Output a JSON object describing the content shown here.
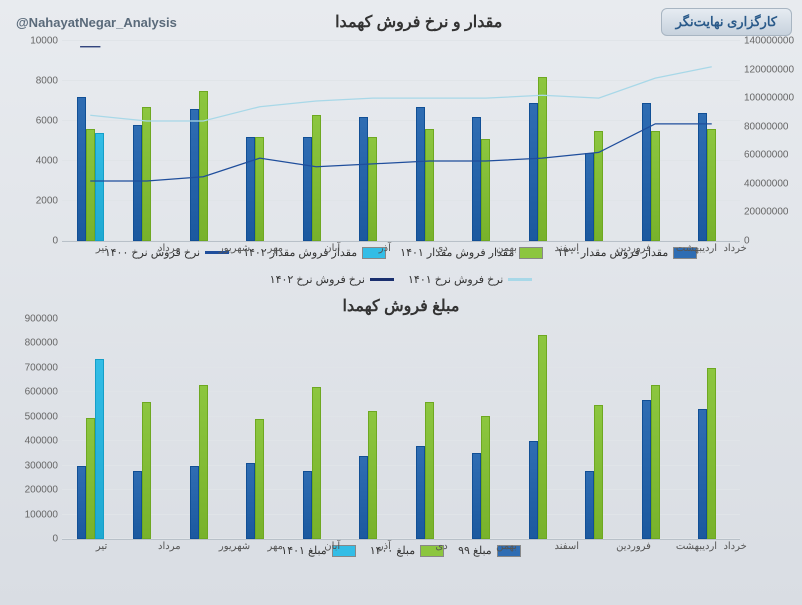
{
  "brokerage": "کارگزاری نهایت‌نگر",
  "handle": "@NahayatNegar_Analysis",
  "chart1": {
    "title": "مقدار و نرخ فروش کهمدا",
    "categories": [
      "تیر",
      "مرداد",
      "شهریور",
      "مهر",
      "آبان",
      "آذر",
      "دی",
      "بهمن",
      "اسفند",
      "فروردین",
      "اردیبهشت",
      "خرداد"
    ],
    "left_axis": {
      "min": 0,
      "max": 10000,
      "step": 2000
    },
    "right_axis": {
      "min": 0,
      "max": 140000000,
      "step": 20000000
    },
    "bar_w": 0.16,
    "series_bars": [
      {
        "name": "مقدار فروش مقدار۱۴۰۰",
        "color": "#2f6db3",
        "data": [
          7200,
          5800,
          6600,
          5200,
          5200,
          6200,
          6700,
          6200,
          6900,
          4400,
          6900,
          6400
        ]
      },
      {
        "name": "مقدار فروش مقدار ۱۴۰۱",
        "color": "#8cc63f",
        "data": [
          5600,
          6700,
          7500,
          5200,
          6300,
          5200,
          5600,
          5100,
          8200,
          5500,
          5500,
          5600
        ]
      },
      {
        "name": "مقدار فروش مقدار ۱۴۰۲",
        "color": "#33bde6",
        "data": [
          5400,
          null,
          null,
          null,
          null,
          null,
          null,
          null,
          null,
          null,
          null,
          null
        ]
      }
    ],
    "series_lines": [
      {
        "name": "نرخ فروش نرخ ۱۴۰۰",
        "color": "#1f4e9c",
        "width": 2.5,
        "data": [
          42000000,
          42000000,
          45000000,
          58000000,
          52000000,
          54000000,
          56000000,
          56000000,
          58000000,
          62000000,
          82000000,
          82000000
        ]
      },
      {
        "name": "نرخ فروش نرخ ۱۴۰۱",
        "color": "#a8d8e8",
        "width": 2.5,
        "data": [
          88000000,
          84000000,
          84000000,
          94000000,
          98000000,
          100000000,
          100000000,
          100000000,
          102000000,
          100000000,
          114000000,
          122000000
        ]
      },
      {
        "name": "نرخ فروش نرخ ۱۴۰۲",
        "color": "#1a2f6e",
        "width": 2.5,
        "data": [
          136000000,
          null,
          null,
          null,
          null,
          null,
          null,
          null,
          null,
          null,
          null,
          null
        ]
      }
    ]
  },
  "chart2": {
    "title": "مبلغ فروش کهمدا",
    "categories": [
      "تیر",
      "مرداد",
      "شهریور",
      "مهر",
      "آبان",
      "آذر",
      "دی",
      "بهمن",
      "اسفند",
      "فروردین",
      "اردیبهشت",
      "خرداد"
    ],
    "left_axis": {
      "min": 0,
      "max": 900000,
      "step": 100000
    },
    "bar_w": 0.16,
    "series_bars": [
      {
        "name": "مبلغ ۹۹",
        "color": "#2f6db3",
        "data": [
          300000,
          280000,
          300000,
          310000,
          280000,
          340000,
          380000,
          350000,
          400000,
          280000,
          570000,
          530000
        ]
      },
      {
        "name": "مبلغ ۱۴۰۰",
        "color": "#8cc63f",
        "data": [
          495000,
          560000,
          630000,
          490000,
          620000,
          525000,
          560000,
          505000,
          835000,
          550000,
          630000,
          700000
        ]
      },
      {
        "name": "مبلغ ۱۴۰۱",
        "color": "#33bde6",
        "data": [
          735000,
          null,
          null,
          null,
          null,
          null,
          null,
          null,
          null,
          null,
          null,
          null
        ]
      }
    ]
  }
}
